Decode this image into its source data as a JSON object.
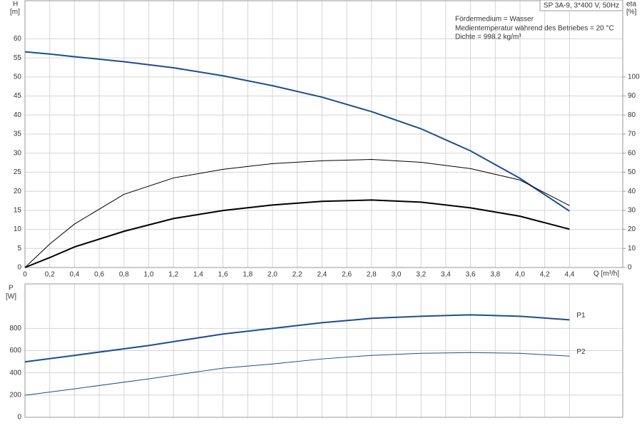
{
  "chart_data": [
    {
      "type": "line",
      "title": "SP 3A-9, 3*400 V, 50Hz",
      "annotations": [
        "Fördermedium = Wasser",
        "Medientemperatur während des Betriebes = 20 °C",
        "Dichte = 998.2 kg/m³"
      ],
      "y_label": "H",
      "y_unit": "[m]",
      "y2_label": "eta",
      "y2_unit": "[%]",
      "x_label": "Q [m³/h]",
      "x": [
        0,
        0.2,
        0.4,
        0.8,
        1.2,
        1.6,
        2.0,
        2.4,
        2.8,
        3.2,
        3.6,
        4.0,
        4.4
      ],
      "series": [
        {
          "color": "#1c4f8a",
          "width": 2,
          "values": [
            56.6,
            56.0,
            55.3,
            54.0,
            52.4,
            50.3,
            47.7,
            44.7,
            40.9,
            36.4,
            30.6,
            23.4,
            14.8
          ]
        },
        {
          "color": "#000000",
          "width": 1,
          "axis": "y2",
          "values": [
            0,
            12.3,
            22.8,
            38.4,
            47,
            51.5,
            54.5,
            56,
            56.7,
            55.2,
            51.9,
            45.9,
            32.5
          ]
        },
        {
          "color": "#000000",
          "width": 2,
          "axis": "y2",
          "values": [
            0,
            5.2,
            10.8,
            19,
            25.7,
            29.9,
            32.8,
            34.7,
            35.4,
            34.3,
            31.3,
            26.9,
            20.1
          ]
        }
      ],
      "xlim": [
        0,
        4.83
      ],
      "xticks": [
        0,
        {
          "value": 0.2,
          "label": "0,2"
        },
        {
          "value": 0.4,
          "label": "0,4"
        },
        {
          "value": 0.6,
          "label": "0,6"
        },
        {
          "value": 0.8,
          "label": "0,8"
        },
        {
          "value": 1.0,
          "label": "1,0"
        },
        {
          "value": 1.2,
          "label": "1,2"
        },
        {
          "value": 1.4,
          "label": "1,4"
        },
        {
          "value": 1.6,
          "label": "1,6"
        },
        {
          "value": 1.8,
          "label": "1,8"
        },
        {
          "value": 2.0,
          "label": "2,0"
        },
        {
          "value": 2.2,
          "label": "2,2"
        },
        {
          "value": 2.4,
          "label": "2,4"
        },
        {
          "value": 2.6,
          "label": "2,6"
        },
        {
          "value": 2.8,
          "label": "2,8"
        },
        {
          "value": 3.0,
          "label": "3,0"
        },
        {
          "value": 3.2,
          "label": "3,2"
        },
        {
          "value": 3.4,
          "label": "3,4"
        },
        {
          "value": 3.6,
          "label": "3,6"
        },
        {
          "value": 3.8,
          "label": "3,8"
        },
        {
          "value": 4.0,
          "label": "4,0"
        },
        {
          "value": 4.2,
          "label": "4,2"
        },
        {
          "value": 4.4,
          "label": "4,4"
        }
      ],
      "ylim": [
        0,
        70
      ],
      "yticks": [
        0,
        5,
        10,
        15,
        20,
        25,
        30,
        35,
        40,
        45,
        50,
        55,
        60
      ],
      "y2lim": [
        0,
        140
      ],
      "y2ticks": [
        0,
        10,
        20,
        30,
        40,
        50,
        60,
        70,
        80,
        90,
        100
      ],
      "grid": true
    },
    {
      "type": "line",
      "y_label": "P",
      "y_unit": "[W]",
      "x": [
        0,
        0.4,
        1.0,
        1.6,
        2.0,
        2.4,
        2.8,
        3.2,
        3.6,
        4.0,
        4.4
      ],
      "series": [
        {
          "name": "P1",
          "color": "#1c4f8a",
          "width": 2,
          "values": [
            499,
            557,
            646,
            749,
            800,
            851,
            890,
            909,
            922,
            909,
            877
          ]
        },
        {
          "name": "P2",
          "color": "#1c4f8a",
          "width": 1,
          "values": [
            198,
            256,
            346,
            442,
            480,
            525,
            557,
            576,
            582,
            576,
            550
          ]
        }
      ],
      "xlim": [
        0,
        4.83
      ],
      "ylim": [
        0,
        1200
      ],
      "yticks": [
        0,
        200,
        400,
        600,
        800
      ],
      "grid": true
    }
  ]
}
